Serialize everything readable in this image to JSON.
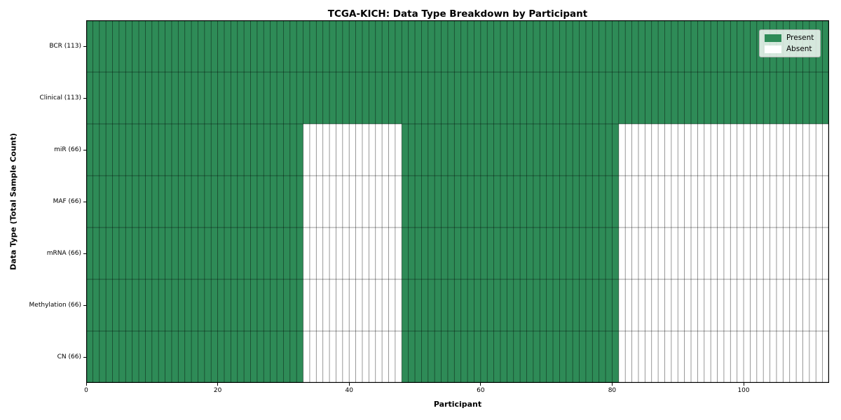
{
  "chart_data": {
    "type": "heatmap",
    "title": "TCGA-KICH: Data Type Breakdown by Participant",
    "xlabel": "Participant",
    "ylabel": "Data Type (Total Sample Count)",
    "x_range": [
      0,
      113
    ],
    "x_ticks": [
      0,
      20,
      40,
      60,
      80,
      100
    ],
    "n_participants": 113,
    "grid": true,
    "legend_position": "upper right",
    "rows": [
      {
        "label": "BCR (113)",
        "data_type": "BCR",
        "total_samples": 113,
        "present_ranges": [
          [
            0,
            113
          ]
        ]
      },
      {
        "label": "Clinical (113)",
        "data_type": "Clinical",
        "total_samples": 113,
        "present_ranges": [
          [
            0,
            113
          ]
        ]
      },
      {
        "label": "miR (66)",
        "data_type": "miR",
        "total_samples": 66,
        "present_ranges": [
          [
            0,
            33
          ],
          [
            48,
            81
          ]
        ]
      },
      {
        "label": "MAF (66)",
        "data_type": "MAF",
        "total_samples": 66,
        "present_ranges": [
          [
            0,
            33
          ],
          [
            48,
            81
          ]
        ]
      },
      {
        "label": "mRNA (66)",
        "data_type": "mRNA",
        "total_samples": 66,
        "present_ranges": [
          [
            0,
            33
          ],
          [
            48,
            81
          ]
        ]
      },
      {
        "label": "Methylation (66)",
        "data_type": "Methylation",
        "total_samples": 66,
        "present_ranges": [
          [
            0,
            33
          ],
          [
            48,
            81
          ]
        ]
      },
      {
        "label": "CN (66)",
        "data_type": "CN",
        "total_samples": 66,
        "present_ranges": [
          [
            0,
            33
          ],
          [
            48,
            81
          ]
        ]
      }
    ],
    "legend": [
      {
        "label": "Present",
        "color": "#2e8b57"
      },
      {
        "label": "Absent",
        "color": "#ffffff"
      }
    ],
    "colors": {
      "present": "#2e8b57",
      "absent": "#ffffff",
      "cell_edge": "#000000",
      "plot_border": "#000000",
      "legend_border": "#b0b0b0"
    }
  }
}
